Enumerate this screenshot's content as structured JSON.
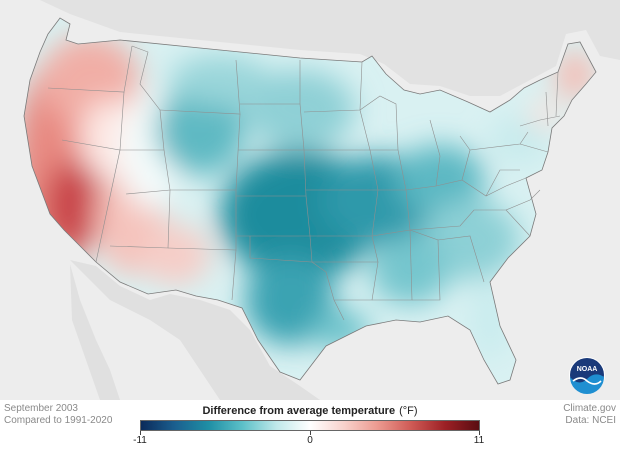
{
  "footer": {
    "date_label": "September 2003",
    "baseline_label": "Compared to 1991-2020",
    "source_site": "Climate.gov",
    "data_source": "Data: NCEI"
  },
  "legend": {
    "title": "Difference from average temperature",
    "unit": "(°F)",
    "min_label": "-11",
    "mid_label": "0",
    "max_label": "11",
    "min": -11,
    "max": 11,
    "colors": [
      "#0b2a5a",
      "#1b5f8f",
      "#1f8fa5",
      "#5cc0c8",
      "#bfe8ea",
      "#ffffff",
      "#f8d2cc",
      "#ec9a90",
      "#cf5a55",
      "#9c2025",
      "#5a0d12"
    ]
  },
  "logo": {
    "text": "NOAA",
    "icon": "noaa-logo-icon"
  },
  "map": {
    "region": "Contiguous United States",
    "colors": {
      "land_outside": "#e2e2e2",
      "water": "#ededed",
      "state_borders": "#8f8f8f"
    }
  }
}
